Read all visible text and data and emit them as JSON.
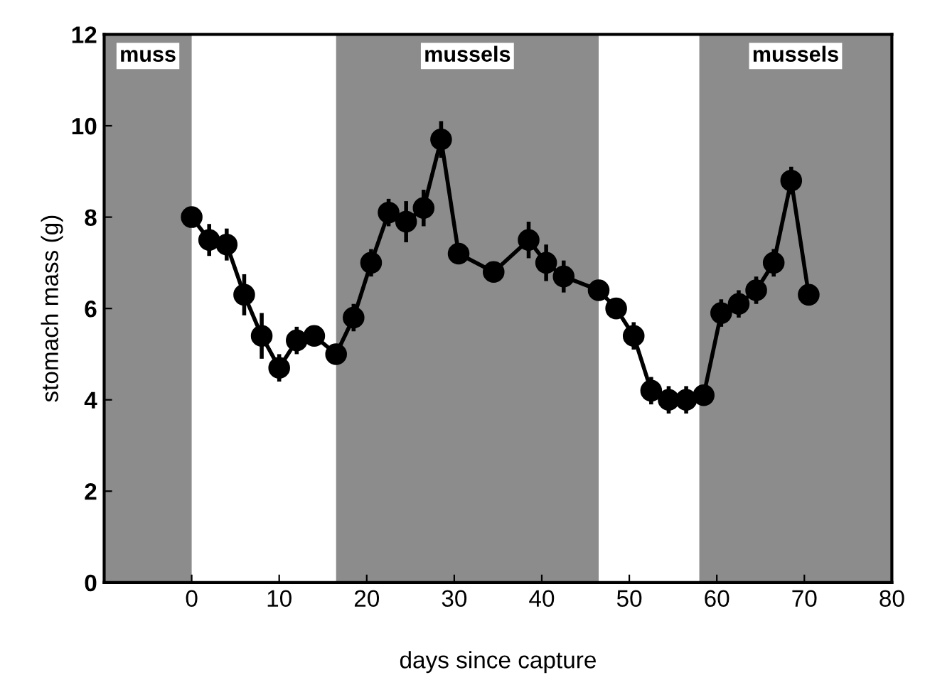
{
  "chart_data": {
    "type": "line",
    "xlabel": "days since capture",
    "ylabel": "stomach mass (g)",
    "x": [
      0,
      2,
      4,
      6,
      8,
      10,
      12,
      14,
      16.5,
      18.5,
      20.5,
      22.5,
      24.5,
      26.5,
      28.5,
      30.5,
      34.5,
      38.5,
      40.5,
      42.5,
      46.5,
      48.5,
      50.5,
      52.5,
      54.5,
      56.5,
      58.5,
      60.5,
      62.5,
      64.5,
      66.5,
      68.5,
      70.5
    ],
    "series": [
      {
        "color": "#000000",
        "values": [
          8.0,
          7.5,
          7.4,
          6.3,
          5.4,
          4.7,
          5.3,
          5.4,
          5.0,
          5.8,
          7.0,
          8.1,
          7.9,
          8.2,
          9.7,
          7.2,
          6.8,
          7.5,
          7.0,
          6.7,
          6.4,
          6.0,
          5.4,
          4.2,
          4.0,
          4.0,
          4.1,
          5.9,
          6.1,
          6.4,
          7.0,
          8.8,
          6.3
        ],
        "errors": [
          0.2,
          0.35,
          0.35,
          0.45,
          0.5,
          0.3,
          0.3,
          0.2,
          0.2,
          0.3,
          0.3,
          0.3,
          0.45,
          0.4,
          0.4,
          0.2,
          0.2,
          0.4,
          0.4,
          0.35,
          0.2,
          0.2,
          0.3,
          0.3,
          0.3,
          0.3,
          0.2,
          0.3,
          0.3,
          0.3,
          0.3,
          0.3,
          0.2
        ]
      }
    ],
    "marker": "circle",
    "line_style": "solid",
    "xlim": [
      -10,
      80
    ],
    "xticks": [
      0,
      10,
      20,
      30,
      40,
      50,
      60,
      70,
      80
    ],
    "ylim": [
      0,
      12
    ],
    "yticks": [
      0,
      2,
      4,
      6,
      8,
      10,
      12
    ],
    "grid": false,
    "bands": [
      {
        "axis": "x",
        "from": -10,
        "to": 0,
        "label": "muss",
        "color": "#8c8c8c"
      },
      {
        "axis": "x",
        "from": 16.5,
        "to": 46.5,
        "label": "mussels",
        "color": "#8c8c8c"
      },
      {
        "axis": "x",
        "from": 58,
        "to": 80,
        "label": "mussels",
        "color": "#8c8c8c"
      }
    ]
  }
}
